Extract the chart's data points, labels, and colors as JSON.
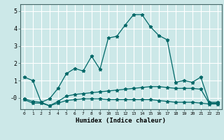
{
  "xlabel": "Humidex (Indice chaleur)",
  "ylabel": "",
  "background_color": "#cce8e8",
  "grid_color": "#b0d8d8",
  "line_color": "#006868",
  "xlim": [
    -0.5,
    23.5
  ],
  "ylim": [
    -0.65,
    5.4
  ],
  "ytick_labels": [
    "-0",
    "1",
    "2",
    "3",
    "4",
    "5"
  ],
  "ytick_vals": [
    0.0,
    1.0,
    2.0,
    3.0,
    4.0,
    5.0
  ],
  "xticks": [
    0,
    1,
    2,
    3,
    4,
    5,
    6,
    7,
    8,
    9,
    10,
    11,
    12,
    13,
    14,
    15,
    16,
    17,
    18,
    19,
    20,
    21,
    22,
    23
  ],
  "line1_x": [
    0,
    1,
    2,
    3,
    4,
    5,
    6,
    7,
    8,
    9,
    10,
    11,
    12,
    13,
    14,
    15,
    16,
    17,
    18,
    19,
    20,
    21,
    22,
    23
  ],
  "line1_y": [
    1.2,
    1.0,
    -0.25,
    -0.05,
    0.55,
    1.4,
    1.7,
    1.55,
    2.4,
    1.65,
    3.45,
    3.55,
    4.2,
    4.8,
    4.8,
    4.1,
    3.6,
    3.35,
    0.9,
    1.0,
    0.9,
    1.2,
    -0.25,
    -0.25
  ],
  "line2_x": [
    0,
    1,
    2,
    3,
    4,
    5,
    6,
    7,
    8,
    9,
    10,
    11,
    12,
    13,
    14,
    15,
    16,
    17,
    18,
    19,
    20,
    21,
    22,
    23
  ],
  "line2_y": [
    -0.1,
    -0.3,
    -0.3,
    -0.45,
    -0.2,
    0.1,
    0.2,
    0.25,
    0.3,
    0.35,
    0.4,
    0.45,
    0.5,
    0.55,
    0.6,
    0.65,
    0.65,
    0.6,
    0.55,
    0.55,
    0.55,
    0.5,
    -0.3,
    -0.3
  ],
  "line3_x": [
    0,
    1,
    2,
    3,
    4,
    5,
    6,
    7,
    8,
    9,
    10,
    11,
    12,
    13,
    14,
    15,
    16,
    17,
    18,
    19,
    20,
    21,
    22,
    23
  ],
  "line3_y": [
    -0.05,
    -0.2,
    -0.25,
    -0.45,
    -0.3,
    -0.15,
    -0.1,
    -0.05,
    -0.05,
    -0.05,
    -0.1,
    -0.1,
    -0.1,
    -0.1,
    -0.1,
    -0.1,
    -0.15,
    -0.2,
    -0.25,
    -0.25,
    -0.25,
    -0.3,
    -0.35,
    -0.35
  ]
}
